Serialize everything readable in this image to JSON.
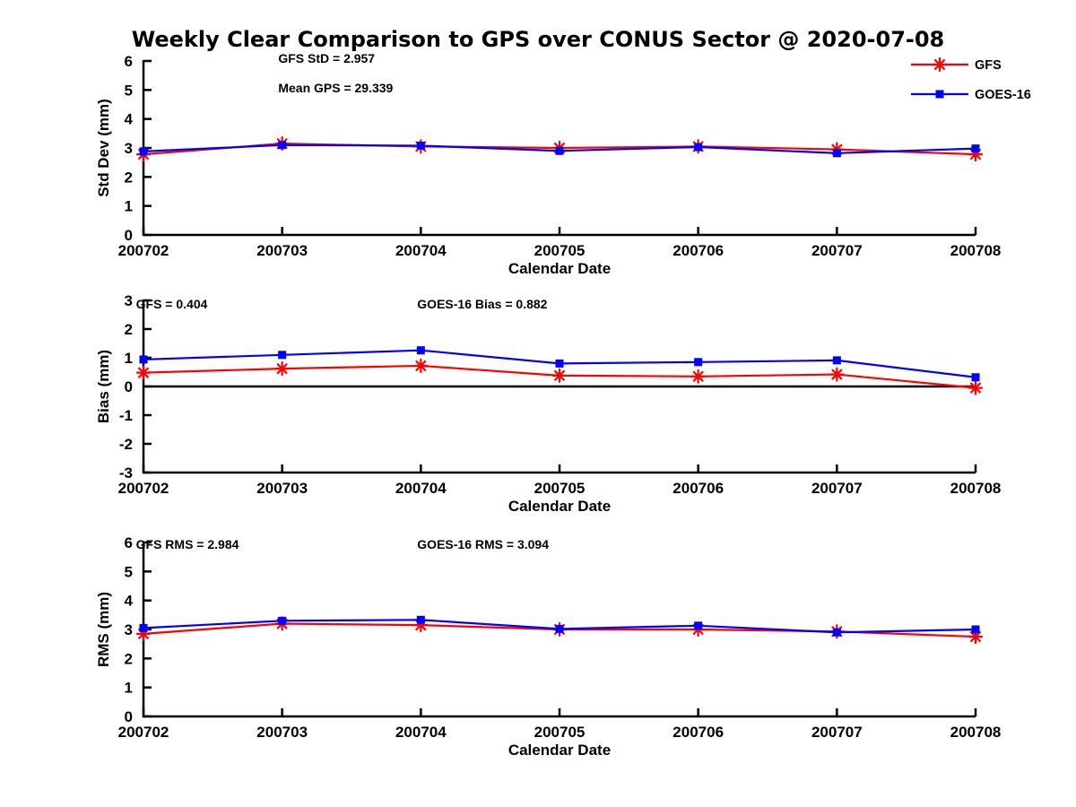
{
  "title": "Weekly Clear Comparison to GPS over CONUS Sector @ 2020-07-08",
  "colors": {
    "gfs": "#ff0000",
    "goes16": "#0000ff",
    "axis": "#000000",
    "zero_line": "#000000",
    "background": "#ffffff"
  },
  "legend": {
    "position": "top-right",
    "entries": [
      {
        "label": "GFS",
        "color": "#ff0000",
        "marker": "asterisk"
      },
      {
        "label": "GOES-16",
        "color": "#0000ff",
        "marker": "square"
      }
    ]
  },
  "chart_data": [
    {
      "type": "line",
      "panel": "stddev",
      "xlabel": "Calendar Date",
      "ylabel": "Std Dev (mm)",
      "ylim": [
        0,
        6
      ],
      "yticks": [
        0,
        1,
        2,
        3,
        4,
        5,
        6
      ],
      "grid": false,
      "zero_line": false,
      "categories": [
        "200702",
        "200703",
        "200704",
        "200705",
        "200706",
        "200707",
        "200708"
      ],
      "annotations": [
        {
          "text": "GFS StD = 2.957",
          "fx": 0.162,
          "fy": -0.015
        },
        {
          "text": "Mean GPS = 29.339",
          "fx": 0.162,
          "fy": 0.155
        }
      ],
      "series": [
        {
          "name": "GFS",
          "color": "#ff0000",
          "marker": "asterisk",
          "values": [
            2.78,
            3.15,
            3.05,
            3.0,
            3.05,
            2.95,
            2.78
          ]
        },
        {
          "name": "GOES-16",
          "color": "#0000ff",
          "marker": "square",
          "values": [
            2.88,
            3.1,
            3.08,
            2.9,
            3.03,
            2.82,
            2.98
          ]
        }
      ]
    },
    {
      "type": "line",
      "panel": "bias",
      "xlabel": "Calendar Date",
      "ylabel": "Bias (mm)",
      "ylim": [
        -3,
        3
      ],
      "yticks": [
        -3,
        -2,
        -1,
        0,
        1,
        2,
        3
      ],
      "grid": false,
      "zero_line": true,
      "categories": [
        "200702",
        "200703",
        "200704",
        "200705",
        "200706",
        "200707",
        "200708"
      ],
      "annotations": [
        {
          "text": "GFS = 0.404",
          "fx": -0.009,
          "fy": 0.02
        },
        {
          "text": "GOES-16 Bias  = 0.882",
          "fx": 0.329,
          "fy": 0.02
        }
      ],
      "series": [
        {
          "name": "GFS",
          "color": "#ff0000",
          "marker": "asterisk",
          "values": [
            0.48,
            0.62,
            0.72,
            0.38,
            0.35,
            0.42,
            -0.05
          ]
        },
        {
          "name": "GOES-16",
          "color": "#0000ff",
          "marker": "square",
          "values": [
            0.94,
            1.1,
            1.26,
            0.8,
            0.85,
            0.91,
            0.32
          ]
        }
      ]
    },
    {
      "type": "line",
      "panel": "rms",
      "xlabel": "Calendar Date",
      "ylabel": "RMS (mm)",
      "ylim": [
        0,
        6
      ],
      "yticks": [
        0,
        1,
        2,
        3,
        4,
        5,
        6
      ],
      "grid": false,
      "zero_line": false,
      "categories": [
        "200702",
        "200703",
        "200704",
        "200705",
        "200706",
        "200707",
        "200708"
      ],
      "annotations": [
        {
          "text": "GFS RMS = 2.984",
          "fx": -0.009,
          "fy": 0.01
        },
        {
          "text": "GOES-16 RMS = 3.094",
          "fx": 0.329,
          "fy": 0.01
        }
      ],
      "series": [
        {
          "name": "GFS",
          "color": "#ff0000",
          "marker": "asterisk",
          "values": [
            2.85,
            3.2,
            3.15,
            3.0,
            3.0,
            2.93,
            2.75
          ]
        },
        {
          "name": "GOES-16",
          "color": "#0000ff",
          "marker": "square",
          "values": [
            3.05,
            3.3,
            3.33,
            3.02,
            3.13,
            2.9,
            3.0
          ]
        }
      ]
    }
  ]
}
